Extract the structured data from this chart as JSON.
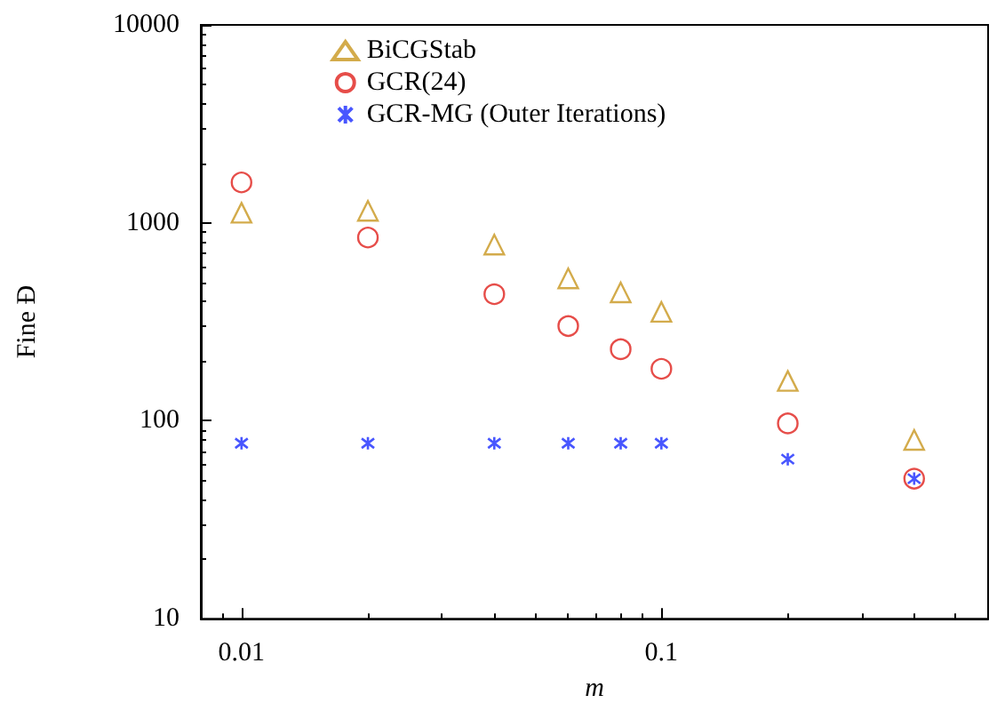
{
  "chart_data": {
    "type": "scatter",
    "xlabel": "m",
    "ylabel": "Fine Đ",
    "log": "xy",
    "grid": false,
    "legend": "top",
    "xlim": [
      0.008,
      0.6
    ],
    "xticks": [
      0.01,
      0.1
    ],
    "ylim": [
      10,
      10000
    ],
    "yticks": [
      10,
      100,
      1000,
      10000
    ],
    "series": [
      {
        "name": "BiCGStab",
        "color": "#c8961e",
        "marker": "triangle",
        "x": [
          0.01,
          0.02,
          0.04,
          0.06,
          0.08,
          0.1,
          0.2,
          0.4
        ],
        "values": [
          1125,
          1150,
          776,
          524,
          445,
          355,
          159,
          80
        ]
      },
      {
        "name": "GCR(24)",
        "color": "#e0201b",
        "marker": "circle",
        "x": [
          0.01,
          0.02,
          0.04,
          0.06,
          0.08,
          0.1,
          0.2,
          0.4
        ],
        "values": [
          1600,
          843,
          436,
          301,
          230,
          183,
          97,
          51
        ]
      },
      {
        "name": "GCR-MG (Outer Iterations)",
        "color": "#1a2cff",
        "marker": "cross",
        "x": [
          0.01,
          0.02,
          0.04,
          0.06,
          0.08,
          0.1,
          0.2,
          0.4
        ],
        "values": [
          77,
          77,
          77,
          77,
          77,
          77,
          64,
          51
        ]
      }
    ]
  }
}
